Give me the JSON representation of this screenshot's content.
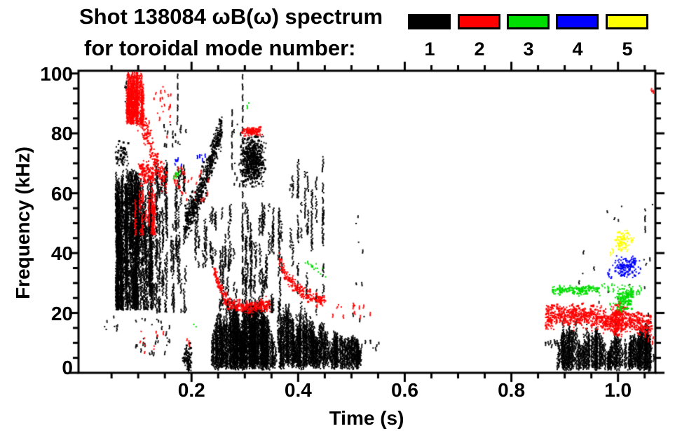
{
  "title": {
    "line1": "Shot 138084 ωB(ω) spectrum",
    "line2": "for toroidal mode number:"
  },
  "legend": {
    "items": [
      {
        "label": "1",
        "color": "#000000"
      },
      {
        "label": "2",
        "color": "#ff0000"
      },
      {
        "label": "3",
        "color": "#00dd00"
      },
      {
        "label": "4",
        "color": "#0000ff"
      },
      {
        "label": "5",
        "color": "#ffff00"
      }
    ]
  },
  "chart_data": {
    "type": "scatter",
    "title": "Shot 138084 ωB(ω) spectrum for toroidal mode number: 1 2 3 4 5",
    "xlabel": "Time (s)",
    "ylabel": "Frequency (kHz)",
    "x_range": [
      -0.012,
      1.0701
    ],
    "y_range": [
      0,
      100.9
    ],
    "x_major_ticks": [
      0.2,
      0.4,
      0.6,
      0.8,
      1.0
    ],
    "x_tick_labels": [
      "0.2",
      "0.4",
      "0.6",
      "0.8",
      "1.0"
    ],
    "x_minor_step": 0.05,
    "y_major_ticks": [
      0,
      20,
      40,
      60,
      80,
      100
    ],
    "y_tick_labels": [
      "0",
      "20",
      "40",
      "60",
      "80",
      "100"
    ],
    "y_minor_step": 5,
    "grid": false,
    "legend_position": "top-right",
    "mode_colors": {
      "1": "#000000",
      "2": "#ff0000",
      "3": "#00dd00",
      "4": "#0000ff",
      "5": "#ffff00"
    },
    "features": [
      {
        "mode": 1,
        "type": "vstreaks",
        "t": [
          0.058,
          0.128
        ],
        "f": [
          22,
          68
        ],
        "cols": 85,
        "seg": [
          4,
          15
        ]
      },
      {
        "mode": 1,
        "type": "blob",
        "c": [
          0.085,
          45
        ],
        "sd": [
          0.013,
          9
        ],
        "n": 550,
        "clip_t": [
          0.058,
          0.127
        ],
        "clip_f": [
          23,
          63
        ]
      },
      {
        "mode": 1,
        "type": "vstreaks",
        "t": [
          0.128,
          0.19
        ],
        "f": [
          21,
          72
        ],
        "cols": 32,
        "seg": [
          2,
          9
        ]
      },
      {
        "mode": 1,
        "type": "specks",
        "t": [
          0.148,
          0.19
        ],
        "f": [
          76,
          84
        ],
        "n": 20
      },
      {
        "mode": 1,
        "type": "blob",
        "c": [
          0.069,
          73
        ],
        "sd": [
          0.006,
          2.4
        ],
        "n": 70,
        "clip_t": [
          0.057,
          0.082
        ],
        "clip_f": [
          68,
          78
        ]
      },
      {
        "mode": 1,
        "type": "specks",
        "t": [
          0.074,
          0.083
        ],
        "f": [
          90,
          98
        ],
        "n": 5
      },
      {
        "mode": 1,
        "type": "chirp",
        "pts": [
          [
            0.188,
            50
          ],
          [
            0.208,
            56.5
          ],
          [
            0.227,
            65.5
          ],
          [
            0.243,
            75
          ],
          [
            0.257,
            82
          ]
        ],
        "th": 5.5,
        "n": 650
      },
      {
        "mode": 1,
        "type": "vstreaks",
        "t": [
          0.19,
          0.252
        ],
        "f": [
          36,
          56
        ],
        "cols": 9,
        "seg": [
          2,
          6
        ]
      },
      {
        "mode": 1,
        "type": "blob",
        "c": [
          0.193,
          4.5
        ],
        "sd": [
          0.0045,
          2.2
        ],
        "n": 110,
        "clip_t": [
          0.182,
          0.204
        ],
        "clip_f": [
          0.5,
          10
        ]
      },
      {
        "mode": 1,
        "type": "specks",
        "t": [
          0.028,
          0.062
        ],
        "f": [
          14,
          19
        ],
        "n": 8
      },
      {
        "mode": 1,
        "type": "specks",
        "t": [
          0.095,
          0.162
        ],
        "f": [
          6,
          19
        ],
        "n": 28
      },
      {
        "mode": 1,
        "type": "column",
        "t": 0.174,
        "f": [
          84,
          100
        ]
      },
      {
        "mode": 1,
        "type": "column",
        "t": 0.296,
        "f": [
          1,
          100
        ]
      },
      {
        "mode": 1,
        "type": "column",
        "t": 0.276,
        "f": [
          68,
          89
        ]
      },
      {
        "mode": 1,
        "type": "blob",
        "c": [
          0.315,
          70.5
        ],
        "sd": [
          0.011,
          3.6
        ],
        "n": 650,
        "clip_t": [
          0.292,
          0.34
        ],
        "clip_f": [
          62,
          79
        ]
      },
      {
        "mode": 1,
        "type": "specks",
        "t": [
          0.279,
          0.295
        ],
        "f": [
          60,
          84
        ],
        "n": 12
      },
      {
        "mode": 1,
        "type": "vstreaks",
        "t": [
          0.246,
          0.36
        ],
        "f": [
          21,
          57
        ],
        "cols": 24,
        "seg": [
          2,
          8
        ]
      },
      {
        "mode": 1,
        "type": "vstreaks",
        "t": [
          0.298,
          0.342
        ],
        "f": [
          2,
          46
        ],
        "cols": 13,
        "seg": [
          3,
          10
        ]
      },
      {
        "mode": 1,
        "type": "lumpband",
        "t": [
          0.236,
          0.358
        ],
        "base": 2.2,
        "cols": 150,
        "env": [
          [
            0.236,
            9
          ],
          [
            0.248,
            16
          ],
          [
            0.256,
            19
          ],
          [
            0.264,
            14
          ],
          [
            0.272,
            20
          ],
          [
            0.285,
            19
          ],
          [
            0.293,
            12
          ],
          [
            0.302,
            20
          ],
          [
            0.315,
            19
          ],
          [
            0.326,
            20
          ],
          [
            0.336,
            17
          ],
          [
            0.346,
            15
          ],
          [
            0.353,
            10
          ],
          [
            0.358,
            7
          ]
        ]
      },
      {
        "mode": 1,
        "type": "vstreaks",
        "t": [
          0.352,
          0.369
        ],
        "f": [
          3,
          55
        ],
        "cols": 7,
        "seg": [
          2,
          8
        ]
      },
      {
        "mode": 1,
        "type": "lumpband",
        "t": [
          0.366,
          0.52
        ],
        "base": 2.8,
        "cols": 150,
        "env": [
          [
            0.366,
            16
          ],
          [
            0.375,
            20
          ],
          [
            0.388,
            19
          ],
          [
            0.394,
            10
          ],
          [
            0.401,
            18
          ],
          [
            0.415,
            17
          ],
          [
            0.427,
            16
          ],
          [
            0.433,
            9
          ],
          [
            0.441,
            15
          ],
          [
            0.455,
            13
          ],
          [
            0.462,
            8
          ],
          [
            0.468,
            12
          ],
          [
            0.481,
            12
          ],
          [
            0.492,
            10
          ],
          [
            0.505,
            11
          ],
          [
            0.52,
            8
          ]
        ]
      },
      {
        "mode": 1,
        "type": "vstreaks",
        "t": [
          0.385,
          0.455
        ],
        "f": [
          20,
          73
        ],
        "cols": 14,
        "seg": [
          2,
          9
        ]
      },
      {
        "mode": 1,
        "type": "specks",
        "t": [
          0.52,
          0.557
        ],
        "f": [
          8,
          13
        ],
        "n": 8
      },
      {
        "mode": 1,
        "type": "specks",
        "t": [
          0.497,
          0.532
        ],
        "f": [
          10,
          55
        ],
        "n": 9
      },
      {
        "mode": 1,
        "type": "lumpband",
        "t": [
          0.885,
          1.062
        ],
        "base": 2,
        "cols": 150,
        "env": [
          [
            0.885,
            6
          ],
          [
            0.893,
            11
          ],
          [
            0.901,
            13
          ],
          [
            0.912,
            14
          ],
          [
            0.924,
            13
          ],
          [
            0.934,
            8
          ],
          [
            0.944,
            12
          ],
          [
            0.955,
            13
          ],
          [
            0.965,
            12
          ],
          [
            0.974,
            10
          ],
          [
            0.982,
            6
          ],
          [
            0.99,
            11
          ],
          [
            1.0,
            12
          ],
          [
            1.008,
            8
          ],
          [
            1.016,
            10
          ],
          [
            1.026,
            12
          ],
          [
            1.036,
            11
          ],
          [
            1.046,
            13
          ],
          [
            1.055,
            14
          ],
          [
            1.062,
            9
          ]
        ]
      },
      {
        "mode": 1,
        "type": "specks",
        "t": [
          0.862,
          0.897
        ],
        "f": [
          9,
          11
        ],
        "n": 14
      },
      {
        "mode": 1,
        "type": "specks",
        "t": [
          0.975,
          1.068
        ],
        "f": [
          25,
          60
        ],
        "n": 15
      },
      {
        "mode": 1,
        "type": "column",
        "t": 1.051,
        "f": [
          47,
          55
        ]
      },
      {
        "mode": 1,
        "type": "specks",
        "t": [
          1.056,
          1.069
        ],
        "f": [
          1,
          20
        ],
        "n": 12
      },
      {
        "mode": 1,
        "type": "specks",
        "t": [
          0.92,
          0.975
        ],
        "f": [
          23,
          41
        ],
        "n": 6
      },
      {
        "mode": 2,
        "type": "vstreaks",
        "t": [
          0.078,
          0.112
        ],
        "f": [
          84,
          100.5
        ],
        "cols": 24,
        "seg": [
          3,
          10
        ]
      },
      {
        "mode": 2,
        "type": "blob",
        "c": [
          0.089,
          93
        ],
        "sd": [
          0.006,
          4
        ],
        "n": 240,
        "clip_t": [
          0.078,
          0.106
        ],
        "clip_f": [
          85,
          101
        ]
      },
      {
        "mode": 2,
        "type": "chirp",
        "pts": [
          [
            0.09,
            92
          ],
          [
            0.1,
            86
          ],
          [
            0.115,
            80
          ],
          [
            0.13,
            72
          ],
          [
            0.142,
            67
          ],
          [
            0.153,
            64.5
          ]
        ],
        "th": 4.5,
        "n": 240
      },
      {
        "mode": 2,
        "type": "blob",
        "c": [
          0.117,
          66.5
        ],
        "sd": [
          0.008,
          2
        ],
        "n": 130,
        "clip_t": [
          0.1,
          0.137
        ],
        "clip_f": [
          62,
          71
        ]
      },
      {
        "mode": 2,
        "type": "specks",
        "t": [
          0.112,
          0.162
        ],
        "f": [
          79,
          96
        ],
        "n": 24
      },
      {
        "mode": 2,
        "type": "vstreaks",
        "t": [
          0.092,
          0.136
        ],
        "f": [
          47,
          62
        ],
        "cols": 11,
        "seg": [
          2,
          6
        ]
      },
      {
        "mode": 2,
        "type": "specks",
        "t": [
          0.165,
          0.232
        ],
        "f": [
          57,
          69
        ],
        "n": 28
      },
      {
        "mode": 2,
        "type": "specks",
        "t": [
          0.1,
          0.147
        ],
        "f": [
          7,
          14
        ],
        "n": 11
      },
      {
        "mode": 2,
        "type": "blob",
        "c": [
          0.313,
          80.6
        ],
        "sd": [
          0.009,
          0.75
        ],
        "n": 120,
        "clip_t": [
          0.294,
          0.334
        ],
        "clip_f": [
          79,
          82.5
        ]
      },
      {
        "mode": 2,
        "type": "chirp",
        "pts": [
          [
            0.242,
            34.5
          ],
          [
            0.251,
            29.5
          ],
          [
            0.263,
            25
          ],
          [
            0.276,
            22.5
          ],
          [
            0.292,
            22
          ],
          [
            0.312,
            21.8
          ],
          [
            0.332,
            22.4
          ],
          [
            0.348,
            22.9
          ]
        ],
        "th": 2.2,
        "n": 300
      },
      {
        "mode": 2,
        "type": "chirp",
        "pts": [
          [
            0.364,
            38
          ],
          [
            0.376,
            33
          ],
          [
            0.391,
            29.5
          ],
          [
            0.406,
            27
          ],
          [
            0.421,
            25.5
          ],
          [
            0.436,
            24.4
          ],
          [
            0.452,
            23.4
          ]
        ],
        "th": 2,
        "n": 210
      },
      {
        "mode": 2,
        "type": "specks",
        "t": [
          0.452,
          0.542
        ],
        "f": [
          19,
          23.5
        ],
        "n": 15
      },
      {
        "mode": 2,
        "type": "chirp",
        "pts": [
          [
            0.864,
            18.5
          ],
          [
            0.9,
            19
          ],
          [
            0.935,
            19
          ],
          [
            0.965,
            18.3
          ],
          [
            0.98,
            16.8
          ],
          [
            0.995,
            17.5
          ],
          [
            1.012,
            17.8
          ],
          [
            1.03,
            17
          ],
          [
            1.05,
            16.3
          ],
          [
            1.064,
            16.6
          ]
        ],
        "th": 3.4,
        "n": 900
      },
      {
        "mode": 2,
        "type": "blob",
        "c": [
          0.998,
          17.5
        ],
        "sd": [
          0.007,
          3.1
        ],
        "n": 170,
        "clip_t": [
          0.984,
          1.016
        ],
        "clip_f": [
          12,
          23.5
        ]
      },
      {
        "mode": 2,
        "type": "specks",
        "t": [
          1.05,
          1.068
        ],
        "f": [
          8,
          17
        ],
        "n": 6
      },
      {
        "mode": 2,
        "type": "specks",
        "t": [
          1.06,
          1.067
        ],
        "f": [
          93.5,
          96.5
        ],
        "n": 3
      },
      {
        "mode": 2,
        "type": "specks",
        "t": [
          0.19,
          0.201
        ],
        "f": [
          8,
          11.5
        ],
        "n": 3
      },
      {
        "mode": 3,
        "type": "specks",
        "t": [
          0.165,
          0.179
        ],
        "f": [
          65.5,
          69
        ],
        "n": 8
      },
      {
        "mode": 3,
        "type": "specks",
        "t": [
          0.301,
          0.308
        ],
        "f": [
          88.5,
          90.2
        ],
        "n": 2
      },
      {
        "mode": 3,
        "type": "specks",
        "t": [
          0.204,
          0.214
        ],
        "f": [
          14.5,
          16.2
        ],
        "n": 2
      },
      {
        "mode": 3,
        "type": "chirp",
        "pts": [
          [
            0.41,
            37.5
          ],
          [
            0.431,
            35.3
          ],
          [
            0.453,
            32.4
          ]
        ],
        "th": 1.3,
        "n": 16
      },
      {
        "mode": 3,
        "type": "chirp",
        "pts": [
          [
            0.875,
            27.3
          ],
          [
            0.9,
            27.8
          ],
          [
            0.926,
            27.4
          ],
          [
            0.95,
            27.9
          ],
          [
            0.966,
            27.5
          ]
        ],
        "th": 1.5,
        "n": 150
      },
      {
        "mode": 3,
        "type": "specks",
        "t": [
          0.966,
          0.996
        ],
        "f": [
          26.8,
          30
        ],
        "n": 9
      },
      {
        "mode": 3,
        "type": "blob",
        "c": [
          1.012,
          25
        ],
        "sd": [
          0.009,
          2.4
        ],
        "n": 150,
        "clip_t": [
          0.994,
          1.031
        ],
        "clip_f": [
          20.5,
          29.6
        ]
      },
      {
        "mode": 3,
        "type": "specks",
        "t": [
          0.978,
          1.028
        ],
        "f": [
          21,
          24
        ],
        "n": 7
      },
      {
        "mode": 3,
        "type": "specks",
        "t": [
          1.03,
          1.047
        ],
        "f": [
          26,
          29.3
        ],
        "n": 5
      },
      {
        "mode": 4,
        "type": "specks",
        "t": [
          0.168,
          0.183
        ],
        "f": [
          69,
          72.6
        ],
        "n": 7
      },
      {
        "mode": 4,
        "type": "specks",
        "t": [
          0.21,
          0.228
        ],
        "f": [
          70,
          73.2
        ],
        "n": 5
      },
      {
        "mode": 4,
        "type": "blob",
        "c": [
          1.017,
          35.3
        ],
        "sd": [
          0.011,
          1.8
        ],
        "n": 150,
        "clip_t": [
          0.994,
          1.043
        ],
        "clip_f": [
          31.5,
          39.6
        ]
      },
      {
        "mode": 4,
        "type": "specks",
        "t": [
          0.981,
          0.991
        ],
        "f": [
          31,
          38
        ],
        "n": 6
      },
      {
        "mode": 5,
        "type": "blob",
        "c": [
          1.009,
          44
        ],
        "sd": [
          0.008,
          1.7
        ],
        "n": 95,
        "clip_t": [
          0.994,
          1.029
        ],
        "clip_f": [
          40.5,
          47.6
        ]
      },
      {
        "mode": 5,
        "type": "specks",
        "t": [
          0.981,
          0.993
        ],
        "f": [
          39.5,
          41.6
        ],
        "n": 3
      }
    ]
  }
}
